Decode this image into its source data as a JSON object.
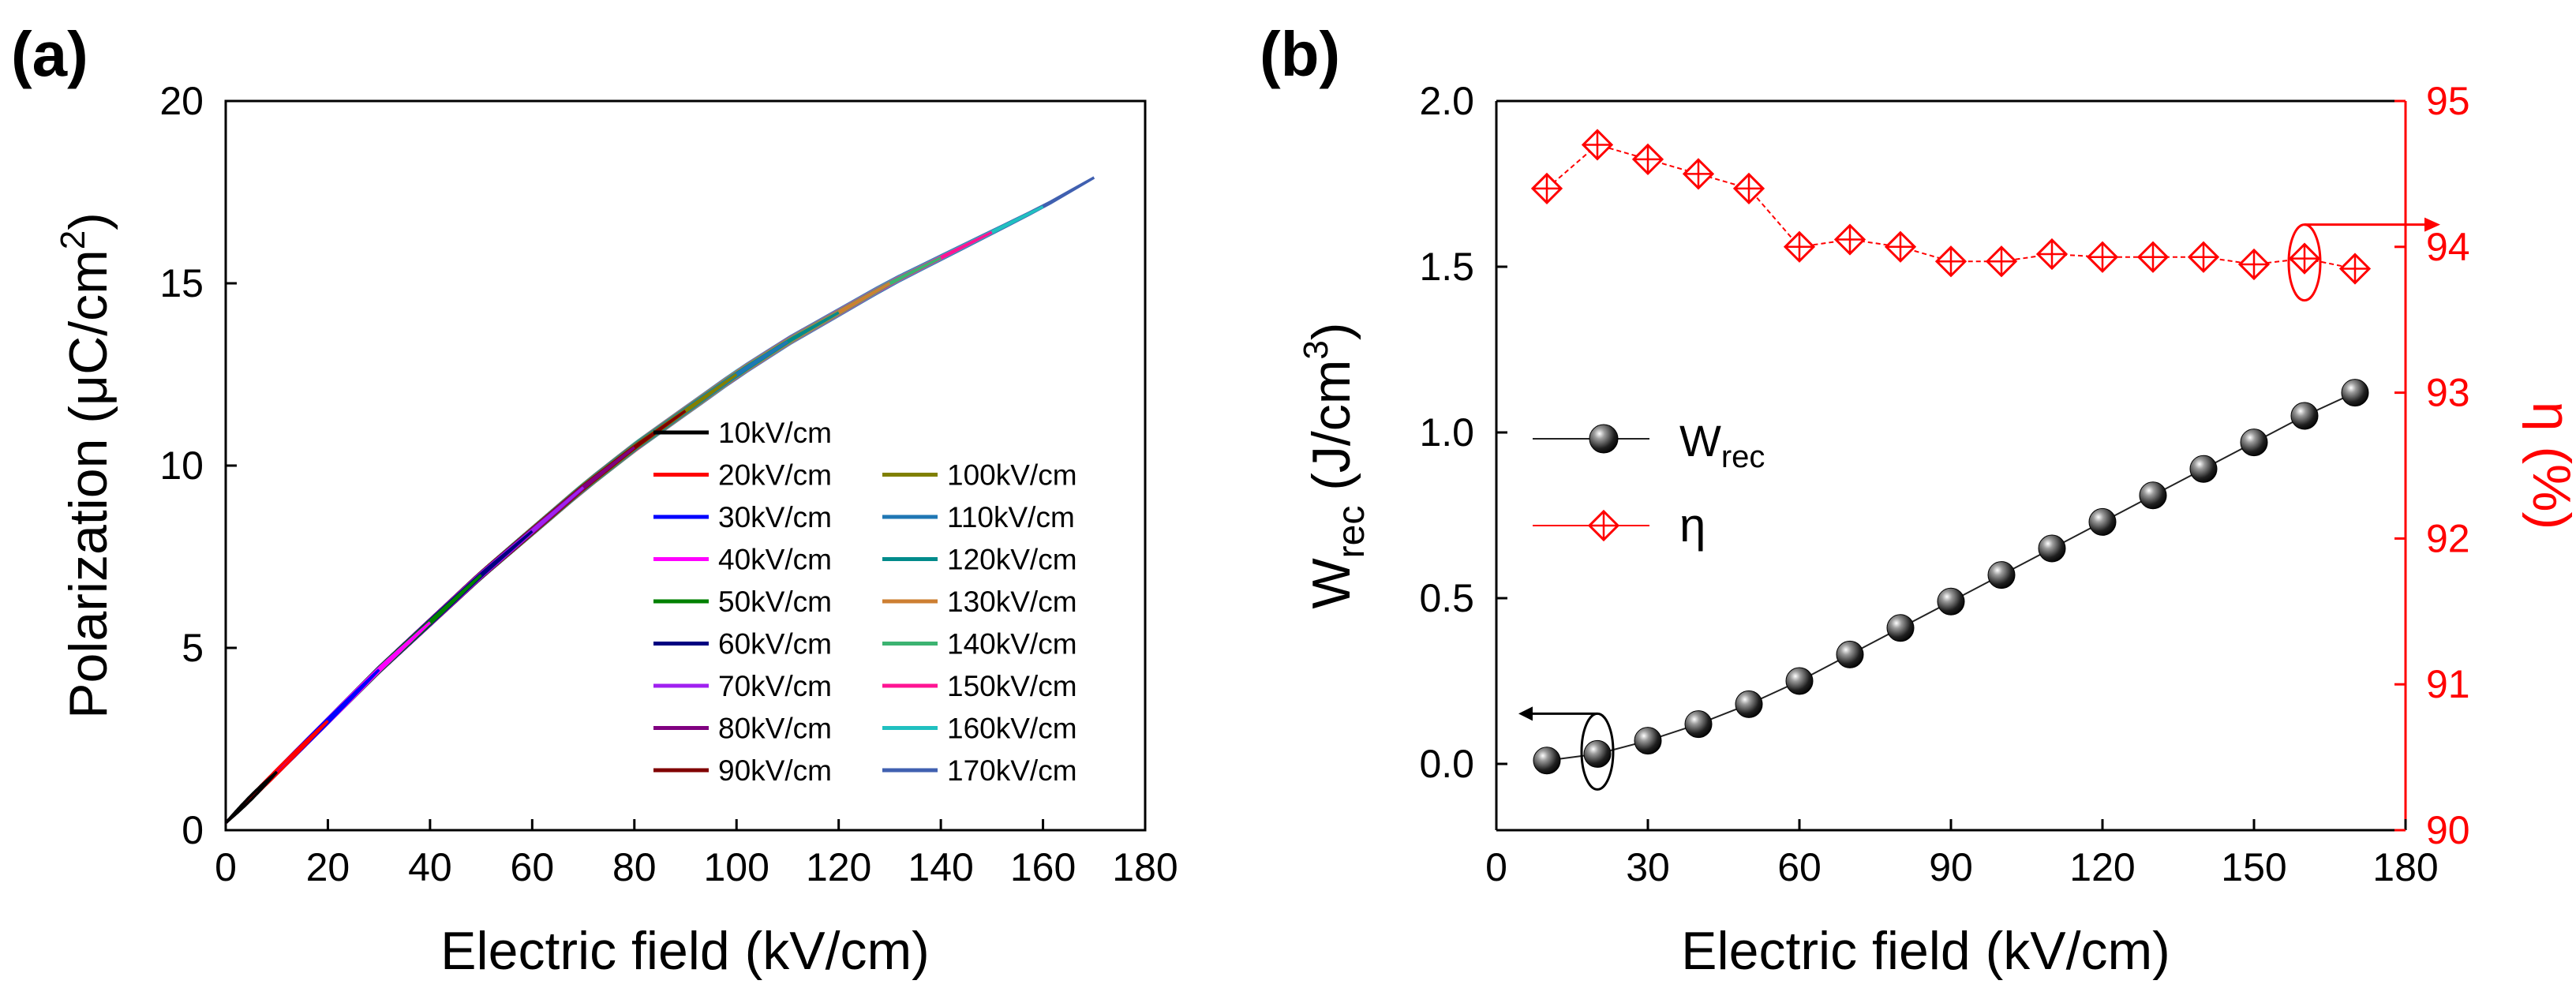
{
  "panel_a": {
    "label": "(a)",
    "xlabel": "Electric field (kV/cm)",
    "ylabel_main": "Polarization (μC/cm",
    "ylabel_sup": "2",
    "ylabel_close": ")"
  },
  "panel_b": {
    "label": "(b)",
    "xlabel": "Electric field (kV/cm)",
    "ylabel_left_main": "W",
    "ylabel_left_sub": "rec",
    "ylabel_left_unit": " (J/cm",
    "ylabel_left_sup": "3",
    "ylabel_left_close": ")",
    "ylabel_right": "η (%)",
    "legend_w_main": "W",
    "legend_w_sub": "rec",
    "legend_eta": "η"
  },
  "colors": {
    "eta": "#ff0000",
    "w": "#111111",
    "axis": "#000000"
  },
  "chart_data": [
    {
      "type": "line",
      "title": "(a)",
      "xlabel": "Electric field (kV/cm)",
      "ylabel": "Polarization (μC/cm²)",
      "xlim": [
        0,
        180
      ],
      "ylim": [
        0,
        20
      ],
      "xticks": [
        0,
        20,
        40,
        60,
        80,
        100,
        120,
        140,
        160,
        180
      ],
      "yticks": [
        0,
        5,
        10,
        15,
        20
      ],
      "legend_position": "lower-right",
      "series": [
        {
          "name": "10kV/cm",
          "emax": 10,
          "color": "#000000"
        },
        {
          "name": "20kV/cm",
          "emax": 20,
          "color": "#ff0000"
        },
        {
          "name": "30kV/cm",
          "emax": 30,
          "color": "#0000ff"
        },
        {
          "name": "40kV/cm",
          "emax": 40,
          "color": "#ff00ff"
        },
        {
          "name": "50kV/cm",
          "emax": 50,
          "color": "#008000"
        },
        {
          "name": "60kV/cm",
          "emax": 60,
          "color": "#000080"
        },
        {
          "name": "70kV/cm",
          "emax": 70,
          "color": "#a020f0"
        },
        {
          "name": "80kV/cm",
          "emax": 80,
          "color": "#800080"
        },
        {
          "name": "90kV/cm",
          "emax": 90,
          "color": "#800000"
        },
        {
          "name": "100kV/cm",
          "emax": 100,
          "color": "#808000"
        },
        {
          "name": "110kV/cm",
          "emax": 110,
          "color": "#1f77b4"
        },
        {
          "name": "120kV/cm",
          "emax": 120,
          "color": "#008b8b"
        },
        {
          "name": "130kV/cm",
          "emax": 130,
          "color": "#cd7f32"
        },
        {
          "name": "140kV/cm",
          "emax": 140,
          "color": "#3cb371"
        },
        {
          "name": "150kV/cm",
          "emax": 150,
          "color": "#ff1493"
        },
        {
          "name": "160kV/cm",
          "emax": 160,
          "color": "#20c0c0"
        },
        {
          "name": "170kV/cm",
          "emax": 170,
          "color": "#4060b0"
        }
      ],
      "curve_reference": {
        "x": [
          0,
          10,
          20,
          30,
          40,
          50,
          60,
          70,
          80,
          90,
          100,
          110,
          120,
          130,
          140,
          150,
          160,
          170
        ],
        "y": [
          0.2,
          1.6,
          3.0,
          4.4,
          5.7,
          7.0,
          8.2,
          9.4,
          10.5,
          11.5,
          12.5,
          13.4,
          14.2,
          15.0,
          15.7,
          16.4,
          17.1,
          17.9
        ]
      }
    },
    {
      "type": "scatter",
      "title": "(b)",
      "xlabel": "Electric field (kV/cm)",
      "ylabel": "Wrec (J/cm³)",
      "ylabel_right": "η (%)",
      "x": [
        10,
        20,
        30,
        40,
        50,
        60,
        70,
        80,
        90,
        100,
        110,
        120,
        130,
        140,
        150,
        160,
        170
      ],
      "xlim": [
        0,
        180
      ],
      "xticks": [
        0,
        30,
        60,
        90,
        120,
        150,
        180
      ],
      "ylim": [
        -0.2,
        2.0
      ],
      "yticks": [
        0.0,
        0.5,
        1.0,
        1.5,
        2.0
      ],
      "ylim_right": [
        90,
        95
      ],
      "yticks_right": [
        90,
        91,
        92,
        93,
        94,
        95
      ],
      "legend_position": "center-left",
      "series": [
        {
          "name": "Wrec",
          "axis": "left",
          "marker": "sphere",
          "values": [
            0.01,
            0.03,
            0.07,
            0.12,
            0.18,
            0.25,
            0.33,
            0.41,
            0.49,
            0.57,
            0.65,
            0.73,
            0.81,
            0.89,
            0.97,
            1.05,
            1.12
          ]
        },
        {
          "name": "η",
          "axis": "right",
          "marker": "crossed-diamond",
          "values": [
            94.4,
            94.7,
            94.6,
            94.5,
            94.4,
            94.0,
            94.05,
            94.0,
            93.9,
            93.9,
            93.95,
            93.93,
            93.93,
            93.93,
            93.88,
            93.92,
            93.85
          ]
        }
      ]
    }
  ]
}
